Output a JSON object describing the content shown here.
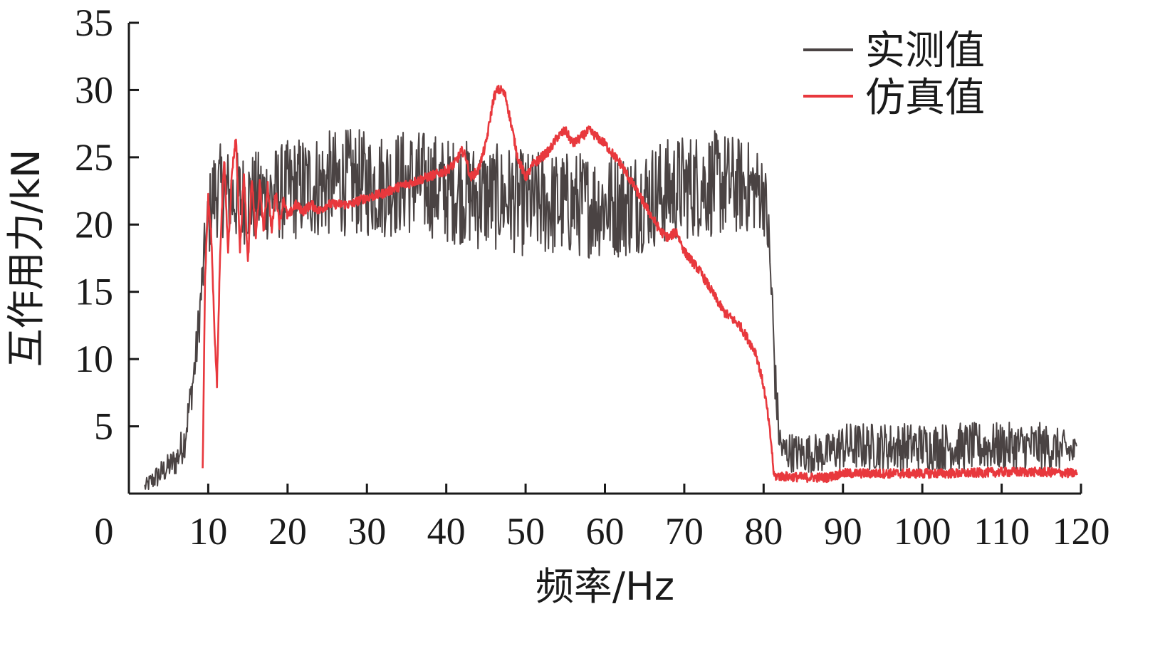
{
  "chart_data": {
    "type": "line",
    "title": "",
    "xlabel": "频率/Hz",
    "ylabel": "互作用力/kN",
    "xlim": [
      0,
      120
    ],
    "ylim": [
      0,
      35
    ],
    "xticks": [
      0,
      10,
      20,
      30,
      40,
      50,
      60,
      70,
      80,
      90,
      100,
      110,
      120
    ],
    "yticks": [
      5,
      10,
      15,
      20,
      25,
      30,
      35
    ],
    "grid": false,
    "legend_position": "top-right",
    "series": [
      {
        "name": "实测值",
        "color": "#4a4343",
        "noisy": true,
        "x": [
          2,
          3,
          4,
          5,
          6,
          7,
          8,
          8.5,
          9,
          9.5,
          10,
          10.5,
          11,
          12,
          13,
          14,
          15,
          16,
          18,
          20,
          22,
          25,
          28,
          30,
          33,
          35,
          38,
          40,
          42,
          44,
          45,
          46,
          47,
          48,
          50,
          52,
          55,
          58,
          60,
          63,
          65,
          68,
          70,
          72,
          75,
          78,
          80,
          80.5,
          81,
          81.5,
          82,
          82.5,
          83,
          84,
          86,
          88,
          90,
          95,
          100,
          105,
          110,
          115,
          118,
          119.5
        ],
        "y": [
          0.5,
          1.0,
          1.5,
          2.0,
          2.5,
          4.0,
          8.0,
          10.5,
          14.0,
          17.5,
          20.0,
          22.0,
          22.5,
          22.5,
          22.0,
          22.0,
          22.0,
          22.0,
          22.3,
          22.5,
          22.8,
          23.0,
          23.2,
          23.0,
          23.0,
          23.2,
          23.0,
          22.5,
          22.5,
          22.0,
          22.0,
          22.0,
          22.0,
          22.0,
          21.5,
          21.5,
          21.5,
          21.5,
          21.5,
          21.5,
          22.0,
          22.5,
          22.8,
          23.0,
          23.0,
          22.8,
          22.5,
          20.0,
          15.0,
          8.0,
          4.0,
          3.0,
          3.2,
          3.0,
          3.0,
          3.0,
          3.5,
          3.5,
          3.5,
          3.5,
          3.5,
          3.5,
          3.2,
          3.0
        ],
        "noise_amplitude": [
          0.5,
          0.8,
          1.0,
          1.0,
          1.2,
          1.5,
          1.5,
          1.8,
          2.0,
          2.5,
          3.0,
          3.5,
          3.5,
          3.5,
          3.5,
          3.5,
          3.5,
          3.5,
          3.5,
          3.8,
          4.0,
          4.0,
          4.0,
          4.0,
          4.0,
          4.0,
          4.0,
          4.0,
          4.0,
          4.0,
          4.0,
          4.0,
          4.0,
          4.0,
          4.0,
          4.0,
          4.0,
          4.0,
          4.0,
          4.0,
          4.0,
          4.0,
          4.0,
          4.0,
          4.0,
          3.5,
          3.0,
          3.0,
          3.0,
          2.0,
          1.5,
          1.5,
          1.5,
          1.5,
          1.5,
          1.5,
          1.8,
          1.8,
          1.8,
          1.8,
          1.8,
          1.8,
          1.5,
          1.2
        ]
      },
      {
        "name": "仿真值",
        "color": "#e8383d",
        "noisy": false,
        "x": [
          9.3,
          9.6,
          10.0,
          10.4,
          10.8,
          11.1,
          11.5,
          12.0,
          12.5,
          13.0,
          13.5,
          14.0,
          14.5,
          15.0,
          15.5,
          16.0,
          16.5,
          17.0,
          17.5,
          18.0,
          18.5,
          19.0,
          19.5,
          20.0,
          21.0,
          22.0,
          23.0,
          24.0,
          25.0,
          26.0,
          27.0,
          28.0,
          29.0,
          30.0,
          32.0,
          34.0,
          36.0,
          38.0,
          40.0,
          41.0,
          42.0,
          42.5,
          43.0,
          44.0,
          45.0,
          46.0,
          46.5,
          47.0,
          47.5,
          48.0,
          49.0,
          50.0,
          51.0,
          52.0,
          53.0,
          54.0,
          55.0,
          56.0,
          57.0,
          58.0,
          59.0,
          60.0,
          62.0,
          64.0,
          66.0,
          67.0,
          68.0,
          69.0,
          70.0,
          72.0,
          74.0,
          75.0,
          76.0,
          77.0,
          78.0,
          79.0,
          80.0,
          80.5,
          81.0,
          81.3,
          82.0,
          85.0,
          88.0,
          90.0,
          95.0,
          100.0,
          105.0,
          110.0,
          115.0,
          119.5
        ],
        "y": [
          2.0,
          16.0,
          22.0,
          19.0,
          12.0,
          8.0,
          18.0,
          25.0,
          18.0,
          24.0,
          26.5,
          18.0,
          24.0,
          17.0,
          23.5,
          19.0,
          23.0,
          19.5,
          23.0,
          19.5,
          22.5,
          20.0,
          22.0,
          20.5,
          21.5,
          21.0,
          21.5,
          21.0,
          21.5,
          21.5,
          21.5,
          21.5,
          21.8,
          22.0,
          22.3,
          22.8,
          23.2,
          23.6,
          24.0,
          24.5,
          25.5,
          25.0,
          23.5,
          24.0,
          26.0,
          29.5,
          30.0,
          30.0,
          29.5,
          28.0,
          25.0,
          23.5,
          24.5,
          25.0,
          25.5,
          26.5,
          27.0,
          26.0,
          26.5,
          27.0,
          26.5,
          26.0,
          24.5,
          22.5,
          20.5,
          19.5,
          19.0,
          19.5,
          18.0,
          16.5,
          14.5,
          13.5,
          13.0,
          12.5,
          11.5,
          10.5,
          8.0,
          6.0,
          3.5,
          1.3,
          1.3,
          1.2,
          1.2,
          1.5,
          1.5,
          1.5,
          1.5,
          1.6,
          1.6,
          1.5
        ]
      }
    ]
  }
}
